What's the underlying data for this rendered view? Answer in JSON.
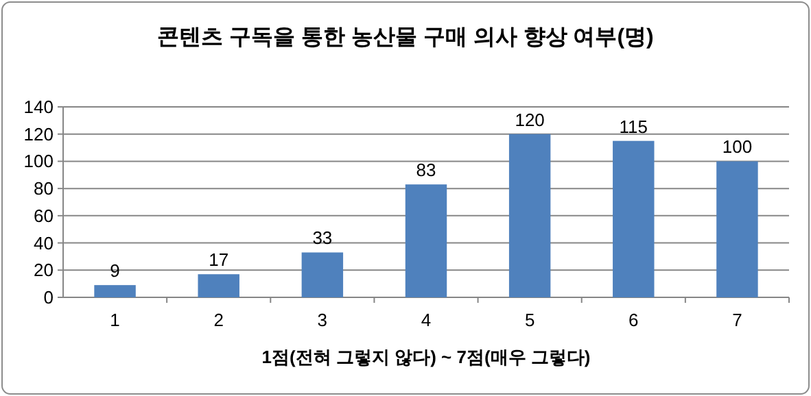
{
  "chart_data": {
    "type": "bar",
    "title": "콘텐츠 구독을 통한 농산물 구매 의사 향상 여부(명)",
    "xlabel": "1점(전혀 그렇지 않다) ~ 7점(매우 그렇다)",
    "categories": [
      "1",
      "2",
      "3",
      "4",
      "5",
      "6",
      "7"
    ],
    "values": [
      9,
      17,
      33,
      83,
      120,
      115,
      100
    ],
    "color": "#4f81bd",
    "ylim": [
      0,
      140
    ],
    "yticks": [
      0,
      20,
      40,
      60,
      80,
      100,
      120,
      140
    ],
    "grid": "y",
    "data_labels": true
  }
}
